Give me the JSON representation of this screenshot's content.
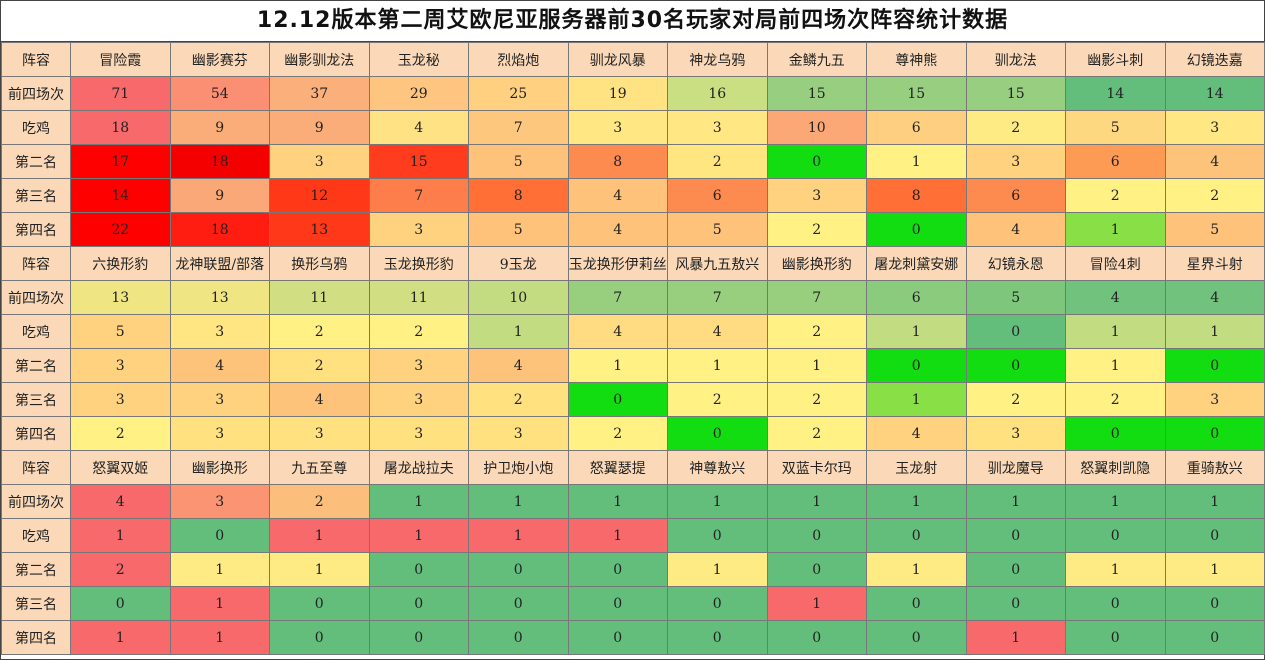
{
  "title": "12.12版本第二周艾欧尼亚服务器前30名玩家对局前四场次阵容统计数据",
  "row_labels": [
    "前四场次",
    "吃鸡",
    "第二名",
    "第三名",
    "第四名"
  ],
  "header_label": "阵容",
  "sections": [
    {
      "comps": [
        "冒险霞",
        "幽影赛芬",
        "幽影驯龙法",
        "玉龙秘",
        "烈焰炮",
        "驯龙风暴",
        "神龙乌鸦",
        "金鳞九五",
        "尊神熊",
        "驯龙法",
        "幽影斗刺",
        "幻镜迭嘉"
      ],
      "rows": [
        [
          71,
          54,
          37,
          29,
          25,
          19,
          16,
          15,
          15,
          15,
          14,
          14
        ],
        [
          18,
          9,
          9,
          4,
          7,
          3,
          3,
          10,
          6,
          2,
          5,
          3
        ],
        [
          17,
          18,
          3,
          15,
          5,
          8,
          2,
          0,
          1,
          3,
          6,
          4
        ],
        [
          14,
          9,
          12,
          7,
          8,
          4,
          6,
          3,
          8,
          6,
          2,
          2
        ],
        [
          22,
          18,
          13,
          3,
          5,
          4,
          5,
          2,
          0,
          4,
          1,
          5
        ]
      ],
      "colors": [
        [
          "#f8696b",
          "#fa8f74",
          "#fbb07b",
          "#fdc57f",
          "#fed080",
          "#ffe383",
          "#c9df81",
          "#98ce7f",
          "#98ce7f",
          "#98ce7f",
          "#63be7b",
          "#63be7b"
        ],
        [
          "#f8696b",
          "#fbad79",
          "#fbad79",
          "#ffe283",
          "#fdc87e",
          "#ffe784",
          "#ffe784",
          "#fba876",
          "#fecf80",
          "#ffeb84",
          "#fed880",
          "#ffe784"
        ],
        [
          "#ff0000",
          "#f40000",
          "#ffd27f",
          "#ff3d1e",
          "#fec27a",
          "#fd8b50",
          "#ffe680",
          "#11dd11",
          "#fff184",
          "#ffd27f",
          "#fd9b55",
          "#fec37a"
        ],
        [
          "#ff0000",
          "#fba878",
          "#ff3818",
          "#fd7d4b",
          "#ff6f36",
          "#fec27a",
          "#fd8b50",
          "#ffd27f",
          "#ff6f36",
          "#fd8b50",
          "#fff184",
          "#fff184"
        ],
        [
          "#ff0000",
          "#ff1c10",
          "#ff3819",
          "#ffd27f",
          "#fec27a",
          "#fec27a",
          "#fec27a",
          "#fff184",
          "#11dd11",
          "#fec27a",
          "#88e046",
          "#fec27a"
        ]
      ]
    },
    {
      "comps": [
        "六换形豹",
        "龙神联盟/部落",
        "换形乌鸦",
        "玉龙换形豹",
        "9玉龙",
        "玉龙换形伊莉丝",
        "风暴九五敖兴",
        "幽影换形豹",
        "屠龙刺黛安娜",
        "幻镜永恩",
        "冒险4刺",
        "星界斗射"
      ],
      "rows": [
        [
          13,
          13,
          11,
          11,
          10,
          7,
          7,
          7,
          6,
          5,
          4,
          4
        ],
        [
          5,
          3,
          2,
          2,
          1,
          4,
          4,
          2,
          1,
          0,
          1,
          1
        ],
        [
          3,
          4,
          2,
          3,
          4,
          1,
          1,
          1,
          0,
          0,
          1,
          0
        ],
        [
          3,
          3,
          4,
          3,
          2,
          0,
          2,
          2,
          1,
          2,
          2,
          3
        ],
        [
          2,
          3,
          3,
          3,
          3,
          2,
          0,
          2,
          4,
          3,
          0,
          0
        ]
      ],
      "colors": [
        [
          "#f0e583",
          "#f0e583",
          "#d2de82",
          "#d2de82",
          "#c4dc81",
          "#98cf7f",
          "#98cf7f",
          "#98cf7f",
          "#8bcb7e",
          "#7dc67c",
          "#70c27c",
          "#70c27c"
        ],
        [
          "#ffd27f",
          "#ffe683",
          "#fff184",
          "#fff184",
          "#c2dc81",
          "#ffdb81",
          "#ffdb81",
          "#fff184",
          "#c2dc81",
          "#63be7b",
          "#c2dc81",
          "#c2dc81"
        ],
        [
          "#fed27f",
          "#fec37a",
          "#ffe180",
          "#fed27f",
          "#fec37a",
          "#fff184",
          "#fff184",
          "#fff184",
          "#11dd11",
          "#11dd11",
          "#fff184",
          "#11dd11"
        ],
        [
          "#ffd27f",
          "#ffd27f",
          "#fec37a",
          "#ffd27f",
          "#ffe180",
          "#11dd11",
          "#fff184",
          "#fff184",
          "#88e046",
          "#fff184",
          "#fff184",
          "#ffd27f"
        ],
        [
          "#fff184",
          "#ffe180",
          "#ffe180",
          "#ffe180",
          "#ffe180",
          "#fff184",
          "#11dd11",
          "#fff184",
          "#fed27f",
          "#ffe180",
          "#11dd11",
          "#11dd11"
        ]
      ]
    },
    {
      "comps": [
        "怒翼双姬",
        "幽影换形",
        "九五至尊",
        "屠龙战拉夫",
        "护卫炮小炮",
        "怒翼瑟提",
        "神尊敖兴",
        "双蓝卡尔玛",
        "玉龙射",
        "驯龙魔导",
        "怒翼刺凯隐",
        "重骑敖兴"
      ],
      "rows": [
        [
          4,
          3,
          2,
          1,
          1,
          1,
          1,
          1,
          1,
          1,
          1,
          1
        ],
        [
          1,
          0,
          1,
          1,
          1,
          1,
          0,
          0,
          0,
          0,
          0,
          0
        ],
        [
          2,
          1,
          1,
          0,
          0,
          0,
          1,
          0,
          1,
          0,
          1,
          1
        ],
        [
          0,
          1,
          0,
          0,
          0,
          0,
          0,
          1,
          0,
          0,
          0,
          0
        ],
        [
          1,
          1,
          0,
          0,
          0,
          0,
          0,
          0,
          0,
          1,
          0,
          0
        ]
      ],
      "colors": [
        [
          "#f8696b",
          "#fa9473",
          "#fcbe7b",
          "#63be7b",
          "#63be7b",
          "#63be7b",
          "#63be7b",
          "#63be7b",
          "#63be7b",
          "#63be7b",
          "#63be7b",
          "#63be7b"
        ],
        [
          "#f8696b",
          "#63be7b",
          "#f8696b",
          "#f8696b",
          "#f8696b",
          "#f8696b",
          "#63be7b",
          "#63be7b",
          "#63be7b",
          "#63be7b",
          "#63be7b",
          "#63be7b"
        ],
        [
          "#f8696b",
          "#ffeb84",
          "#ffeb84",
          "#63be7b",
          "#63be7b",
          "#63be7b",
          "#ffeb84",
          "#63be7b",
          "#ffeb84",
          "#63be7b",
          "#ffeb84",
          "#ffeb84"
        ],
        [
          "#63be7b",
          "#f8696b",
          "#63be7b",
          "#63be7b",
          "#63be7b",
          "#63be7b",
          "#63be7b",
          "#f8696b",
          "#63be7b",
          "#63be7b",
          "#63be7b",
          "#63be7b"
        ],
        [
          "#f8696b",
          "#f8696b",
          "#63be7b",
          "#63be7b",
          "#63be7b",
          "#63be7b",
          "#63be7b",
          "#63be7b",
          "#63be7b",
          "#f8696b",
          "#63be7b",
          "#63be7b"
        ]
      ]
    }
  ]
}
